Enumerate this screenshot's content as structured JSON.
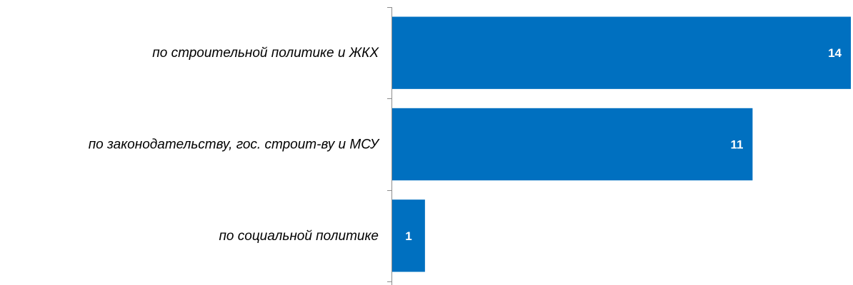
{
  "chart_data": {
    "type": "bar",
    "orientation": "horizontal",
    "categories": [
      "по строительной политике и ЖКХ",
      "по законодательству, гос. строит-ву и МСУ",
      "по социальной политике"
    ],
    "values": [
      14,
      11,
      1
    ],
    "value_labels": [
      "14",
      "11",
      "1"
    ],
    "title": "",
    "xlabel": "",
    "ylabel": "",
    "xlim": [
      0,
      14
    ],
    "grid": false,
    "legend": "none",
    "colors": {
      "bar": "#0070C0",
      "value_label": "#ffffff",
      "category_label": "#000000",
      "axis": "#8c8c8c"
    }
  }
}
